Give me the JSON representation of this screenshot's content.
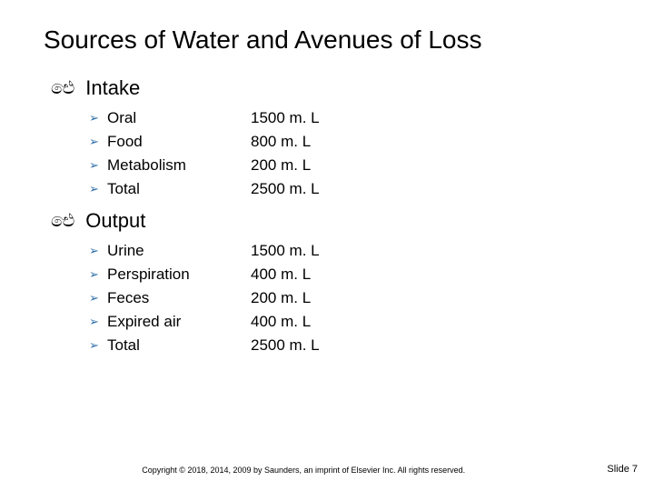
{
  "title": "Sources of Water and Avenues of Loss",
  "bullet_glyph": "➢",
  "section_glyph": "ඓ",
  "arrow_color": "#2f6fa8",
  "sections": [
    {
      "label": "Intake",
      "items": [
        {
          "name": "Oral",
          "value": "1500 m. L"
        },
        {
          "name": "Food",
          "value": "800 m. L"
        },
        {
          "name": "Metabolism",
          "value": "200 m. L"
        },
        {
          "name": "Total",
          "value": "2500 m. L"
        }
      ]
    },
    {
      "label": "Output",
      "items": [
        {
          "name": "Urine",
          "value": "1500 m. L"
        },
        {
          "name": "Perspiration",
          "value": "400 m. L"
        },
        {
          "name": "Feces",
          "value": "200 m. L"
        },
        {
          "name": "Expired air",
          "value": "400 m. L"
        },
        {
          "name": "Total",
          "value": "2500 m. L"
        }
      ]
    }
  ],
  "copyright": "Copyright © 2018, 2014, 2009 by Saunders, an imprint of Elsevier Inc. All rights reserved.",
  "slide_number": "Slide 7",
  "fonts": {
    "title_size": 28,
    "section_size": 22,
    "row_size": 17,
    "footer_size": 9
  },
  "background_color": "#ffffff"
}
